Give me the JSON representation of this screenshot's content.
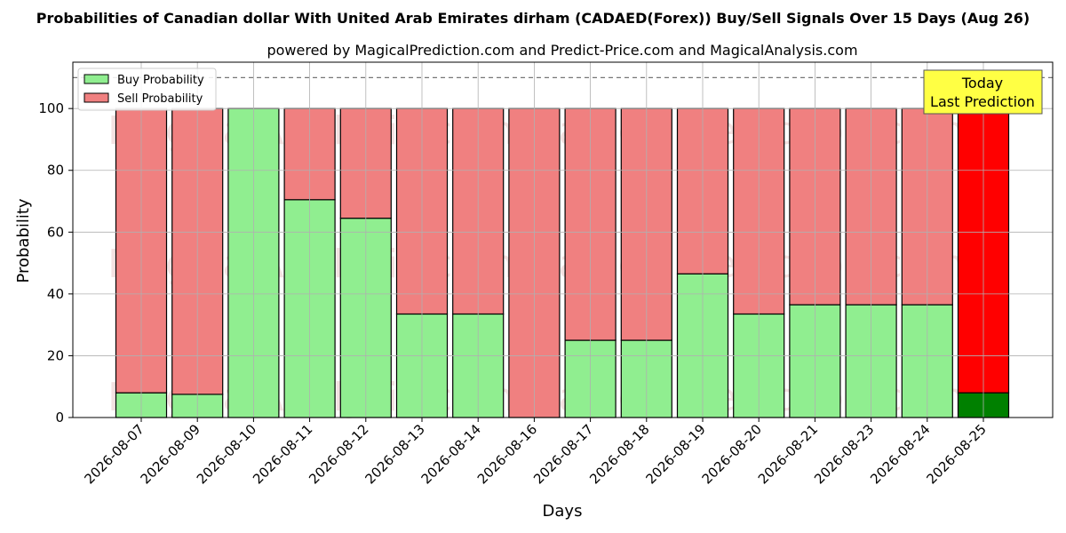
{
  "chart_data": {
    "type": "bar",
    "stacked": true,
    "title": "Probabilities of Canadian dollar With United Arab Emirates dirham (CADAED(Forex)) Buy/Sell Signals Over 15 Days (Aug 26)",
    "subtitle": "powered by MagicalPrediction.com and Predict-Price.com and MagicalAnalysis.com",
    "xlabel": "Days",
    "ylabel": "Probability",
    "ylim": [
      0,
      115
    ],
    "yticks": [
      0,
      20,
      40,
      60,
      80,
      100
    ],
    "threshold_line": 110,
    "grid": true,
    "legend_position": "top-left",
    "categories": [
      "2026-08-07",
      "2026-08-09",
      "2026-08-10",
      "2026-08-11",
      "2026-08-12",
      "2026-08-13",
      "2026-08-14",
      "2026-08-16",
      "2026-08-17",
      "2026-08-18",
      "2026-08-19",
      "2026-08-20",
      "2026-08-21",
      "2026-08-23",
      "2026-08-24",
      "2026-08-25"
    ],
    "series": [
      {
        "name": "Buy Probability",
        "color": "#90ee90",
        "values": [
          8,
          7.5,
          100,
          70.5,
          64.5,
          33.5,
          33.5,
          0,
          25,
          25,
          46.5,
          33.5,
          36.5,
          36.5,
          36.5,
          8
        ]
      },
      {
        "name": "Sell Probability",
        "color": "#f08080",
        "values": [
          92,
          92.5,
          0,
          29.5,
          35.5,
          66.5,
          66.5,
          100,
          75,
          75,
          53.5,
          66.5,
          63.5,
          63.5,
          63.5,
          92
        ]
      }
    ],
    "highlight": {
      "index": 15,
      "buy_color": "#008000",
      "sell_color": "#ff0000"
    },
    "annotation": {
      "line1": "Today",
      "line2": "Last Prediction",
      "bg": "#ffff44"
    },
    "watermarks": [
      "MagicalAnalysis.com",
      "MagicalPrediction.com"
    ]
  }
}
